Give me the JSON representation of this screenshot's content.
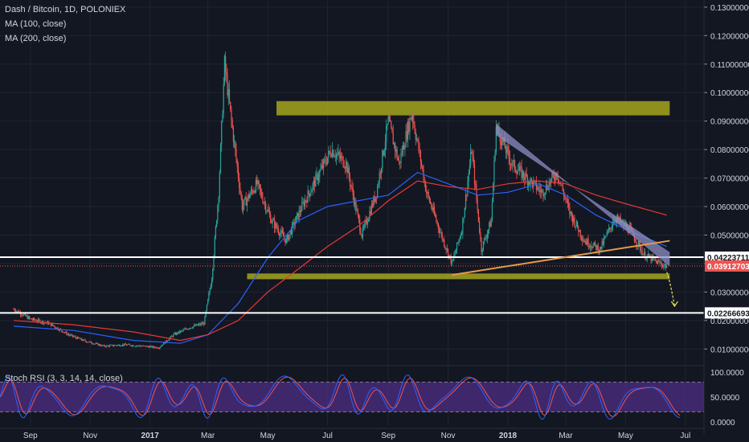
{
  "legend": {
    "title": "Dash / Bitcoin, 1D, POLONIEX",
    "ma100": "MA (100, close)",
    "ma200": "MA (200, close)",
    "rsi": "Stoch RSI (3, 3, 14, 14, close)"
  },
  "colors": {
    "background": "#131722",
    "grid": "#1f2433",
    "up": "#26a69a",
    "down": "#ef5350",
    "ma100": "#2962ff",
    "ma200": "#e53935",
    "zone": "#a5a51c",
    "wedge": "#8e8fc4",
    "trendline": "#e69a4a",
    "rsi_k": "#2962ff",
    "rsi_d": "#ef5350",
    "rsi_band": "#4b2c80"
  },
  "price_tags": {
    "upper": "0.04223711",
    "current": "0.03912703",
    "lower": "0.02266693"
  },
  "chart_data": {
    "type": "candlestick",
    "symbol": "Dash / Bitcoin",
    "interval": "1D",
    "exchange": "POLONIEX",
    "x_ticks": [
      "Sep",
      "Nov",
      "2017",
      "Mar",
      "May",
      "Jul",
      "Sep",
      "Nov",
      "2018",
      "Mar",
      "May",
      "Jul"
    ],
    "y_ticks": [
      "0.13000000",
      "0.12000000",
      "0.11000000",
      "0.10000000",
      "0.09000000",
      "0.08000000",
      "0.07000000",
      "0.06000000",
      "0.05000000",
      "0.04000000",
      "0.03000000",
      "0.02000000",
      "0.01000000"
    ],
    "ylim": [
      0.005,
      0.13
    ],
    "price_path": [
      [
        "2016-08-15",
        0.024
      ],
      [
        "2016-09-01",
        0.0205
      ],
      [
        "2016-09-20",
        0.019
      ],
      [
        "2016-10-10",
        0.015
      ],
      [
        "2016-10-25",
        0.013
      ],
      [
        "2016-11-15",
        0.011
      ],
      [
        "2016-12-05",
        0.0115
      ],
      [
        "2016-12-25",
        0.011
      ],
      [
        "2017-01-10",
        0.0105
      ],
      [
        "2017-01-25",
        0.015
      ],
      [
        "2017-02-10",
        0.0175
      ],
      [
        "2017-02-25",
        0.019
      ],
      [
        "2017-03-05",
        0.035
      ],
      [
        "2017-03-12",
        0.065
      ],
      [
        "2017-03-18",
        0.11
      ],
      [
        "2017-03-25",
        0.09
      ],
      [
        "2017-04-05",
        0.06
      ],
      [
        "2017-04-20",
        0.068
      ],
      [
        "2017-05-05",
        0.055
      ],
      [
        "2017-05-20",
        0.048
      ],
      [
        "2017-06-05",
        0.06
      ],
      [
        "2017-06-20",
        0.07
      ],
      [
        "2017-07-05",
        0.08
      ],
      [
        "2017-07-20",
        0.075
      ],
      [
        "2017-08-05",
        0.05
      ],
      [
        "2017-08-20",
        0.065
      ],
      [
        "2017-09-01",
        0.09
      ],
      [
        "2017-09-12",
        0.075
      ],
      [
        "2017-09-25",
        0.093
      ],
      [
        "2017-10-10",
        0.065
      ],
      [
        "2017-10-25",
        0.05
      ],
      [
        "2017-11-05",
        0.04
      ],
      [
        "2017-11-15",
        0.052
      ],
      [
        "2017-11-25",
        0.08
      ],
      [
        "2017-12-05",
        0.045
      ],
      [
        "2017-12-15",
        0.055
      ],
      [
        "2017-12-20",
        0.088
      ],
      [
        "2018-01-05",
        0.075
      ],
      [
        "2018-01-20",
        0.07
      ],
      [
        "2018-02-05",
        0.065
      ],
      [
        "2018-02-20",
        0.072
      ],
      [
        "2018-03-05",
        0.058
      ],
      [
        "2018-03-20",
        0.048
      ],
      [
        "2018-04-05",
        0.045
      ],
      [
        "2018-04-20",
        0.056
      ],
      [
        "2018-05-05",
        0.052
      ],
      [
        "2018-05-20",
        0.043
      ],
      [
        "2018-06-05",
        0.04
      ],
      [
        "2018-06-12",
        0.0391
      ]
    ],
    "ma100_path": [
      [
        "2016-08-15",
        0.018
      ],
      [
        "2016-10-15",
        0.0165
      ],
      [
        "2016-12-15",
        0.013
      ],
      [
        "2017-02-01",
        0.012
      ],
      [
        "2017-03-01",
        0.015
      ],
      [
        "2017-04-01",
        0.026
      ],
      [
        "2017-05-01",
        0.042
      ],
      [
        "2017-06-01",
        0.055
      ],
      [
        "2017-07-01",
        0.06
      ],
      [
        "2017-08-01",
        0.062
      ],
      [
        "2017-09-01",
        0.064
      ],
      [
        "2017-10-01",
        0.072
      ],
      [
        "2017-11-01",
        0.068
      ],
      [
        "2017-12-01",
        0.064
      ],
      [
        "2018-01-01",
        0.065
      ],
      [
        "2018-02-01",
        0.068
      ],
      [
        "2018-03-01",
        0.064
      ],
      [
        "2018-04-01",
        0.057
      ],
      [
        "2018-05-01",
        0.052
      ],
      [
        "2018-06-12",
        0.046
      ]
    ],
    "ma200_path": [
      [
        "2016-08-15",
        0.02
      ],
      [
        "2016-10-15",
        0.0185
      ],
      [
        "2016-12-15",
        0.016
      ],
      [
        "2017-02-01",
        0.013
      ],
      [
        "2017-03-01",
        0.015
      ],
      [
        "2017-04-01",
        0.02
      ],
      [
        "2017-05-01",
        0.03
      ],
      [
        "2017-06-01",
        0.038
      ],
      [
        "2017-07-01",
        0.046
      ],
      [
        "2017-08-01",
        0.053
      ],
      [
        "2017-09-01",
        0.062
      ],
      [
        "2017-10-01",
        0.069
      ],
      [
        "2017-11-01",
        0.067
      ],
      [
        "2017-12-01",
        0.066
      ],
      [
        "2018-01-01",
        0.068
      ],
      [
        "2018-02-01",
        0.069
      ],
      [
        "2018-03-01",
        0.068
      ],
      [
        "2018-04-01",
        0.064
      ],
      [
        "2018-05-01",
        0.061
      ],
      [
        "2018-06-12",
        0.057
      ]
    ],
    "annotations": {
      "resistance_zone": {
        "from": "2017-05-10",
        "to": "2018-06-15",
        "low": 0.092,
        "high": 0.097
      },
      "support_zone": {
        "from": "2017-04-10",
        "to": "2018-06-15",
        "low": 0.0345,
        "high": 0.0365
      },
      "upper_line": 0.04223711,
      "current_line": 0.03912703,
      "lower_line": 0.02266693,
      "wedge": [
        [
          "2017-12-20",
          0.089
        ],
        [
          "2018-06-15",
          0.039
        ]
      ],
      "rising_trendline": [
        [
          "2017-11-05",
          0.036
        ],
        [
          "2018-06-15",
          0.048
        ]
      ],
      "projection_arrow": [
        [
          "2018-06-12",
          0.037
        ],
        [
          "2018-06-20",
          0.025
        ]
      ]
    },
    "rsi": {
      "name": "Stoch RSI (3, 3, 14, 14, close)",
      "ylim": [
        0,
        100
      ],
      "y_ticks": [
        "100.0000",
        "50.0000",
        "0.0000"
      ],
      "bands": [
        20,
        80
      ]
    }
  }
}
